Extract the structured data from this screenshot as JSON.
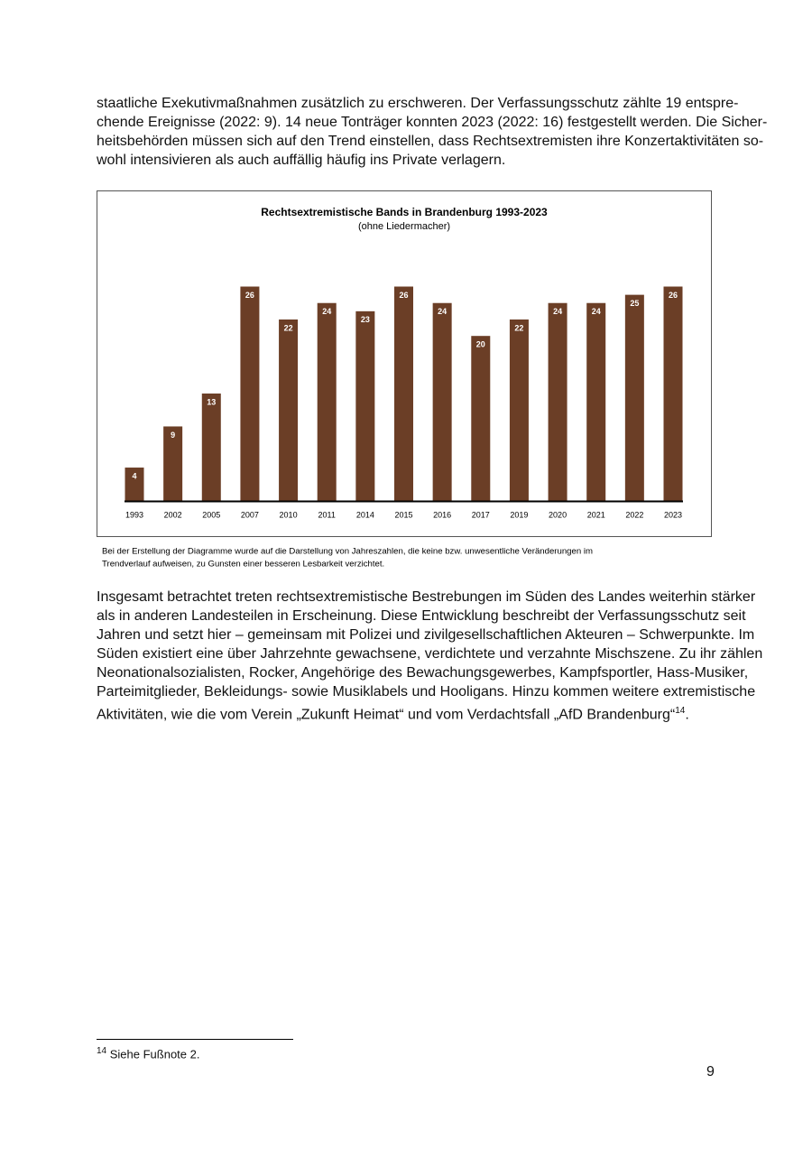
{
  "body": {
    "paragraph_1": [
      "staatliche Exekutivmaßnahmen zusätzlich zu erschweren. Der Verfassungsschutz zählte 19 entspre-",
      "chende Ereignisse (2022: 9). 14 neue Tonträger konnten 2023 (2022: 16) festgestellt werden. Die Sicher-",
      "heitsbehörden müssen sich auf den Trend einstellen, dass Rechtsextremisten ihre Konzertaktivitäten so-",
      "wohl intensivieren als auch auffällig häufig ins Private verlagern."
    ],
    "caption": [
      "Bei der Erstellung der Diagramme wurde auf die Darstellung von Jahreszahlen, die keine bzw. unwesentliche Veränderungen im",
      "Trendverlauf aufweisen, zu Gunsten einer besseren Lesbarkeit verzichtet."
    ],
    "paragraph_2": [
      "Insgesamt betrachtet treten rechtsextremistische Bestrebungen im Süden des Landes weiterhin stärker",
      "als in anderen Landesteilen in Erscheinung. Diese Entwicklung beschreibt der Verfassungsschutz seit",
      "Jahren und setzt hier – gemeinsam mit Polizei und zivilgesellschaftlichen Akteuren – Schwerpunkte. Im",
      "Süden existiert eine über Jahrzehnte gewachsene, verdichtete und verzahnte Mischszene. Zu ihr zählen",
      "Neonationalsozialisten, Rocker, Angehörige des Bewachungsgewerbes, Kampfsportler, Hass-Musiker,",
      "Parteimitglieder, Bekleidungs- sowie Musiklabels und Hooligans. Hinzu kommen weitere extremistische",
      "Aktivitäten, wie die vom Verein „Zukunft Heimat“ und vom Verdachtsfall „AfD Brandenburg“"
    ],
    "footnote_ref": "14",
    "paragraph_2_end": "."
  },
  "footnote": {
    "number": "14",
    "text": "Siehe Fußnote 2."
  },
  "page_number": "9",
  "chart_data": {
    "type": "bar",
    "title": "Rechtsextremistische Bands in Brandenburg 1993-2023",
    "subtitle": "(ohne Liedermacher)",
    "categories": [
      "1993",
      "2002",
      "2005",
      "2007",
      "2010",
      "2011",
      "2014",
      "2015",
      "2016",
      "2017",
      "2019",
      "2020",
      "2021",
      "2022",
      "2023"
    ],
    "values": [
      4,
      9,
      13,
      26,
      22,
      24,
      23,
      26,
      24,
      20,
      22,
      24,
      24,
      25,
      26
    ],
    "color": "#6b3e26"
  }
}
